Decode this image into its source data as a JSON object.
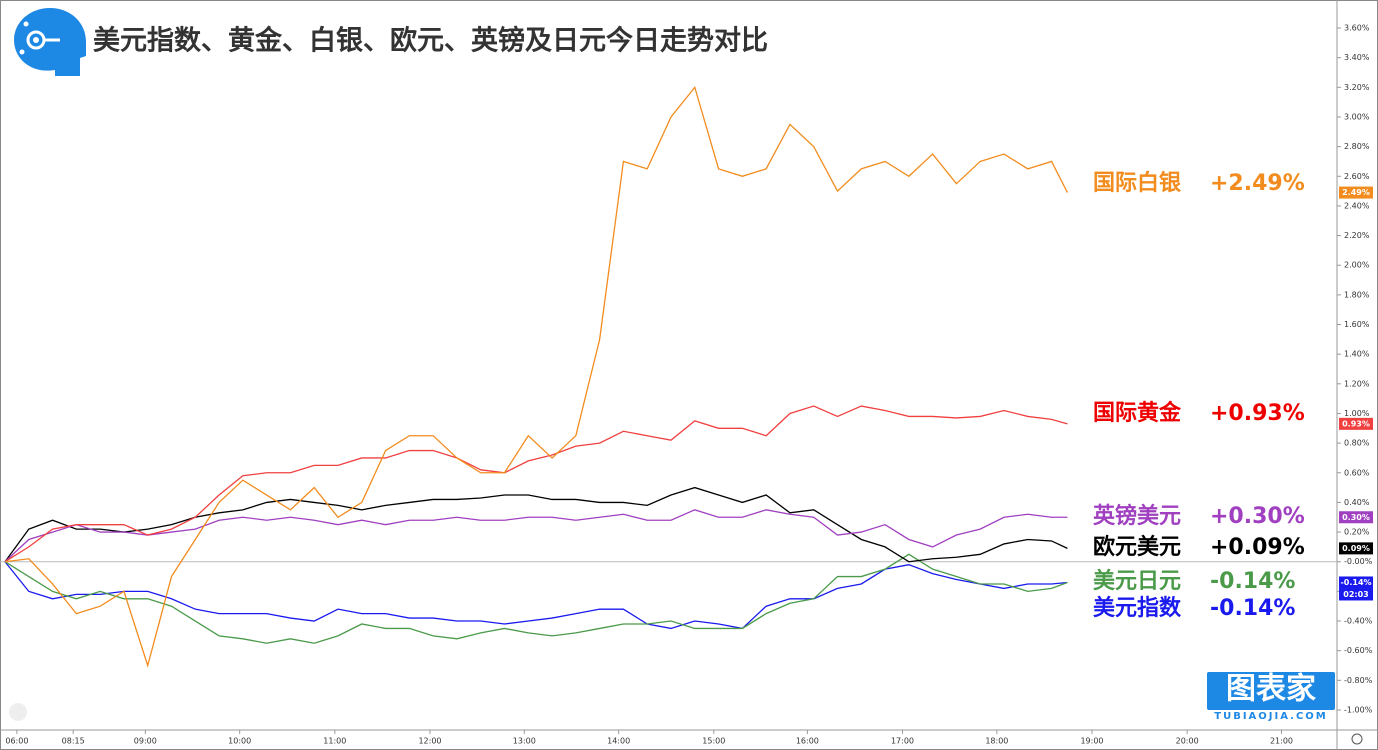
{
  "chart_data": {
    "type": "line",
    "title": "美元指数、黄金、白银、欧元、英镑及日元今日走势对比",
    "watermark": "图表家",
    "watermark_sub": "TUBIAOJIA.COM",
    "countdown": "02:03",
    "xlim": [
      0,
      168
    ],
    "xticks": [
      {
        "value": 1.5,
        "label": "06:00"
      },
      {
        "value": 8.6,
        "label": "08:15"
      },
      {
        "value": 17.7,
        "label": "09:00"
      },
      {
        "value": 29.6,
        "label": "10:00"
      },
      {
        "value": 41.6,
        "label": "11:00"
      },
      {
        "value": 53.6,
        "label": "12:00"
      },
      {
        "value": 65.5,
        "label": "13:00"
      },
      {
        "value": 77.4,
        "label": "14:00"
      },
      {
        "value": 89.4,
        "label": "15:00"
      },
      {
        "value": 101.2,
        "label": "16:00"
      },
      {
        "value": 113.2,
        "label": "17:00"
      },
      {
        "value": 125.1,
        "label": "18:00"
      },
      {
        "value": 137.1,
        "label": "19:00"
      },
      {
        "value": 149.1,
        "label": "20:00"
      },
      {
        "value": 161,
        "label": "21:00"
      }
    ],
    "ylim": [
      -1.1,
      3.7
    ],
    "yticks": [
      {
        "value": -1.0,
        "label": "-1.00%"
      },
      {
        "value": -0.8,
        "label": "-0.80%"
      },
      {
        "value": -0.6,
        "label": "-0.60%"
      },
      {
        "value": -0.4,
        "label": "-0.40%"
      },
      {
        "value": -0.2,
        "label": "-0.20%"
      },
      {
        "value": 0,
        "label": "-0.00%"
      },
      {
        "value": 0.2,
        "label": "0.20%"
      },
      {
        "value": 0.4,
        "label": "0.40%"
      },
      {
        "value": 0.6,
        "label": "0.60%"
      },
      {
        "value": 0.8,
        "label": "0.80%"
      },
      {
        "value": 1.0,
        "label": "1.00%"
      },
      {
        "value": 1.2,
        "label": "1.20%"
      },
      {
        "value": 1.4,
        "label": "1.40%"
      },
      {
        "value": 1.6,
        "label": "1.60%"
      },
      {
        "value": 1.8,
        "label": "1.80%"
      },
      {
        "value": 2.0,
        "label": "2.00%"
      },
      {
        "value": 2.2,
        "label": "2.20%"
      },
      {
        "value": 2.4,
        "label": "2.40%"
      },
      {
        "value": 2.6,
        "label": "2.60%"
      },
      {
        "value": 2.8,
        "label": "2.80%"
      },
      {
        "value": 3.0,
        "label": "3.00%"
      },
      {
        "value": 3.2,
        "label": "3.20%"
      },
      {
        "value": 3.4,
        "label": "3.40%"
      },
      {
        "value": 3.6,
        "label": "3.60%"
      }
    ],
    "x": [
      0,
      3,
      6,
      9,
      12,
      15,
      18,
      21,
      24,
      27,
      30,
      33,
      36,
      39,
      42,
      45,
      48,
      51,
      54,
      57,
      60,
      63,
      66,
      69,
      72,
      75,
      78,
      81,
      84,
      87,
      90,
      93,
      96,
      99,
      102,
      105,
      108,
      111,
      114,
      117,
      120,
      123,
      126,
      129,
      132,
      134
    ],
    "series": [
      {
        "name": "国际白银",
        "change_label": "+2.49%",
        "price_tag": "2.49%",
        "color": "#f28c1e",
        "label_color": "#f28c1e",
        "values": [
          0,
          0.02,
          -0.15,
          -0.35,
          -0.3,
          -0.2,
          -0.7,
          -0.1,
          0.15,
          0.4,
          0.55,
          0.45,
          0.35,
          0.5,
          0.3,
          0.4,
          0.75,
          0.85,
          0.85,
          0.7,
          0.6,
          0.6,
          0.85,
          0.7,
          0.85,
          1.5,
          2.7,
          2.65,
          3.0,
          3.2,
          2.65,
          2.6,
          2.65,
          2.95,
          2.8,
          2.5,
          2.65,
          2.7,
          2.6,
          2.75,
          2.55,
          2.7,
          2.75,
          2.65,
          2.7,
          2.49
        ]
      },
      {
        "name": "国际黄金",
        "change_label": "+0.93%",
        "price_tag": "0.93%",
        "color": "#f04040",
        "label_color": "#ee0000",
        "values": [
          0,
          0.1,
          0.22,
          0.25,
          0.25,
          0.25,
          0.18,
          0.22,
          0.3,
          0.45,
          0.58,
          0.6,
          0.6,
          0.65,
          0.65,
          0.7,
          0.7,
          0.75,
          0.75,
          0.7,
          0.62,
          0.6,
          0.68,
          0.72,
          0.78,
          0.8,
          0.88,
          0.85,
          0.82,
          0.95,
          0.9,
          0.9,
          0.85,
          1.0,
          1.05,
          0.98,
          1.05,
          1.02,
          0.98,
          0.98,
          0.97,
          0.98,
          1.02,
          0.98,
          0.96,
          0.93
        ]
      },
      {
        "name": "英镑美元",
        "change_label": "+0.30%",
        "price_tag": "0.30%",
        "color": "#a040c0",
        "label_color": "#a040c0",
        "values": [
          0,
          0.15,
          0.2,
          0.25,
          0.2,
          0.2,
          0.18,
          0.2,
          0.22,
          0.28,
          0.3,
          0.28,
          0.3,
          0.28,
          0.25,
          0.28,
          0.25,
          0.28,
          0.28,
          0.3,
          0.28,
          0.28,
          0.3,
          0.3,
          0.28,
          0.3,
          0.32,
          0.28,
          0.28,
          0.35,
          0.3,
          0.3,
          0.35,
          0.32,
          0.3,
          0.18,
          0.2,
          0.25,
          0.15,
          0.1,
          0.18,
          0.22,
          0.3,
          0.32,
          0.3,
          0.3
        ]
      },
      {
        "name": "欧元美元",
        "change_label": "+0.09%",
        "price_tag": "0.09%",
        "color": "#000000",
        "label_color": "#000000",
        "values": [
          0,
          0.22,
          0.28,
          0.22,
          0.22,
          0.2,
          0.22,
          0.25,
          0.3,
          0.33,
          0.35,
          0.4,
          0.42,
          0.4,
          0.38,
          0.35,
          0.38,
          0.4,
          0.42,
          0.42,
          0.43,
          0.45,
          0.45,
          0.42,
          0.42,
          0.4,
          0.4,
          0.38,
          0.45,
          0.5,
          0.45,
          0.4,
          0.45,
          0.33,
          0.35,
          0.25,
          0.15,
          0.1,
          0.0,
          0.02,
          0.03,
          0.05,
          0.12,
          0.15,
          0.14,
          0.09
        ]
      },
      {
        "name": "美元日元",
        "change_label": "-0.14%",
        "color": "#4a9a4a",
        "label_color": "#4a9a4a",
        "values": [
          0,
          -0.1,
          -0.2,
          -0.25,
          -0.2,
          -0.25,
          -0.25,
          -0.3,
          -0.4,
          -0.5,
          -0.52,
          -0.55,
          -0.52,
          -0.55,
          -0.5,
          -0.42,
          -0.45,
          -0.45,
          -0.5,
          -0.52,
          -0.48,
          -0.45,
          -0.48,
          -0.5,
          -0.48,
          -0.45,
          -0.42,
          -0.42,
          -0.4,
          -0.45,
          -0.45,
          -0.45,
          -0.35,
          -0.28,
          -0.25,
          -0.1,
          -0.1,
          -0.05,
          0.05,
          -0.05,
          -0.1,
          -0.15,
          -0.15,
          -0.2,
          -0.18,
          -0.14
        ]
      },
      {
        "name": "美元指数",
        "change_label": "-0.14%",
        "price_tag": "-0.14%",
        "color": "#1a1aee",
        "label_color": "#1a1aee",
        "values": [
          0,
          -0.2,
          -0.25,
          -0.22,
          -0.22,
          -0.2,
          -0.2,
          -0.25,
          -0.32,
          -0.35,
          -0.35,
          -0.35,
          -0.38,
          -0.4,
          -0.32,
          -0.35,
          -0.35,
          -0.38,
          -0.38,
          -0.4,
          -0.4,
          -0.42,
          -0.4,
          -0.38,
          -0.35,
          -0.32,
          -0.32,
          -0.42,
          -0.45,
          -0.4,
          -0.42,
          -0.45,
          -0.3,
          -0.25,
          -0.25,
          -0.18,
          -0.15,
          -0.05,
          -0.02,
          -0.08,
          -0.12,
          -0.15,
          -0.18,
          -0.15,
          -0.15,
          -0.14
        ]
      }
    ]
  }
}
